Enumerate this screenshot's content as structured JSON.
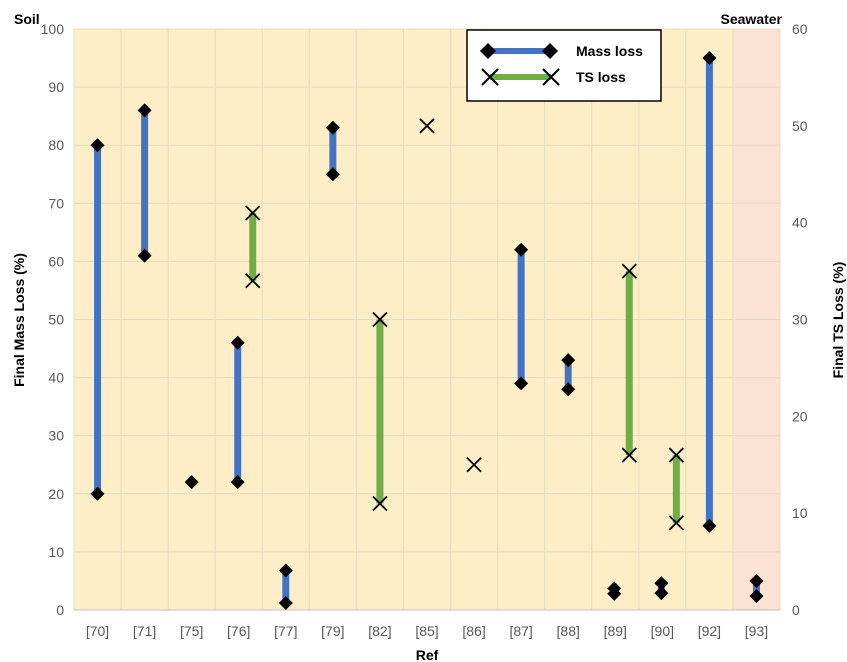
{
  "chart_data": {
    "type": "range",
    "xlabel": "Ref",
    "ylabel_left": "Final Mass Loss (%)",
    "ylabel_right": "Final TS Loss (%)",
    "ylim_left": [
      0,
      100
    ],
    "ylim_right": [
      0,
      60
    ],
    "yticks_left": [
      "0",
      "10",
      "20",
      "30",
      "40",
      "50",
      "60",
      "70",
      "80",
      "90",
      "100"
    ],
    "yticks_right": [
      "0",
      "10",
      "20",
      "30",
      "40",
      "50",
      "60"
    ],
    "categories": [
      "[70]",
      "[71]",
      "[75]",
      "[76]",
      "[77]",
      "[79]",
      "[82]",
      "[85]",
      "[86]",
      "[87]",
      "[88]",
      "[89]",
      "[90]",
      "[92]",
      "[93]"
    ],
    "regions": [
      {
        "label": "Soil",
        "from_index": 0,
        "to_index": 13,
        "color": "#fdeec8"
      },
      {
        "label": "Seawater",
        "from_index": 14,
        "to_index": 14,
        "color": "#fbe2d3"
      }
    ],
    "legend": {
      "placement": "top-right",
      "entries": [
        {
          "name": "Mass loss",
          "color": "#4472c4",
          "marker": "diamond"
        },
        {
          "name": "TS loss",
          "color": "#70ad47",
          "marker": "x"
        }
      ]
    },
    "grid": true,
    "series": [
      {
        "name": "Mass loss",
        "axis": "left",
        "color": "#4472c4",
        "marker": "diamond",
        "ranges": [
          {
            "category": "[70]",
            "min": 20,
            "max": 80
          },
          {
            "category": "[71]",
            "min": 61,
            "max": 86
          },
          {
            "category": "[75]",
            "min": 22,
            "max": 22
          },
          {
            "category": "[76]",
            "min": 22,
            "max": 46
          },
          {
            "category": "[77]",
            "min": 1.2,
            "max": 6.8
          },
          {
            "category": "[79]",
            "min": 75,
            "max": 83
          },
          {
            "category": "[87]",
            "min": 39,
            "max": 62
          },
          {
            "category": "[88]",
            "min": 38,
            "max": 43
          },
          {
            "category": "[89]",
            "min": 2.8,
            "max": 3.7
          },
          {
            "category": "[90]",
            "min": 2.9,
            "max": 4.6
          },
          {
            "category": "[92]",
            "min": 14.5,
            "max": 95
          },
          {
            "category": "[93]",
            "min": 2.4,
            "max": 5
          }
        ]
      },
      {
        "name": "TS loss",
        "axis": "right",
        "color": "#70ad47",
        "marker": "x",
        "ranges": [
          {
            "category": "[76]",
            "min": 34,
            "max": 41
          },
          {
            "category": "[82]",
            "min": 11,
            "max": 30
          },
          {
            "category": "[85]",
            "min": 50,
            "max": 50
          },
          {
            "category": "[86]",
            "min": 15,
            "max": 15
          },
          {
            "category": "[89]",
            "min": 16,
            "max": 35
          },
          {
            "category": "[90]",
            "min": 9,
            "max": 16
          }
        ]
      }
    ]
  }
}
